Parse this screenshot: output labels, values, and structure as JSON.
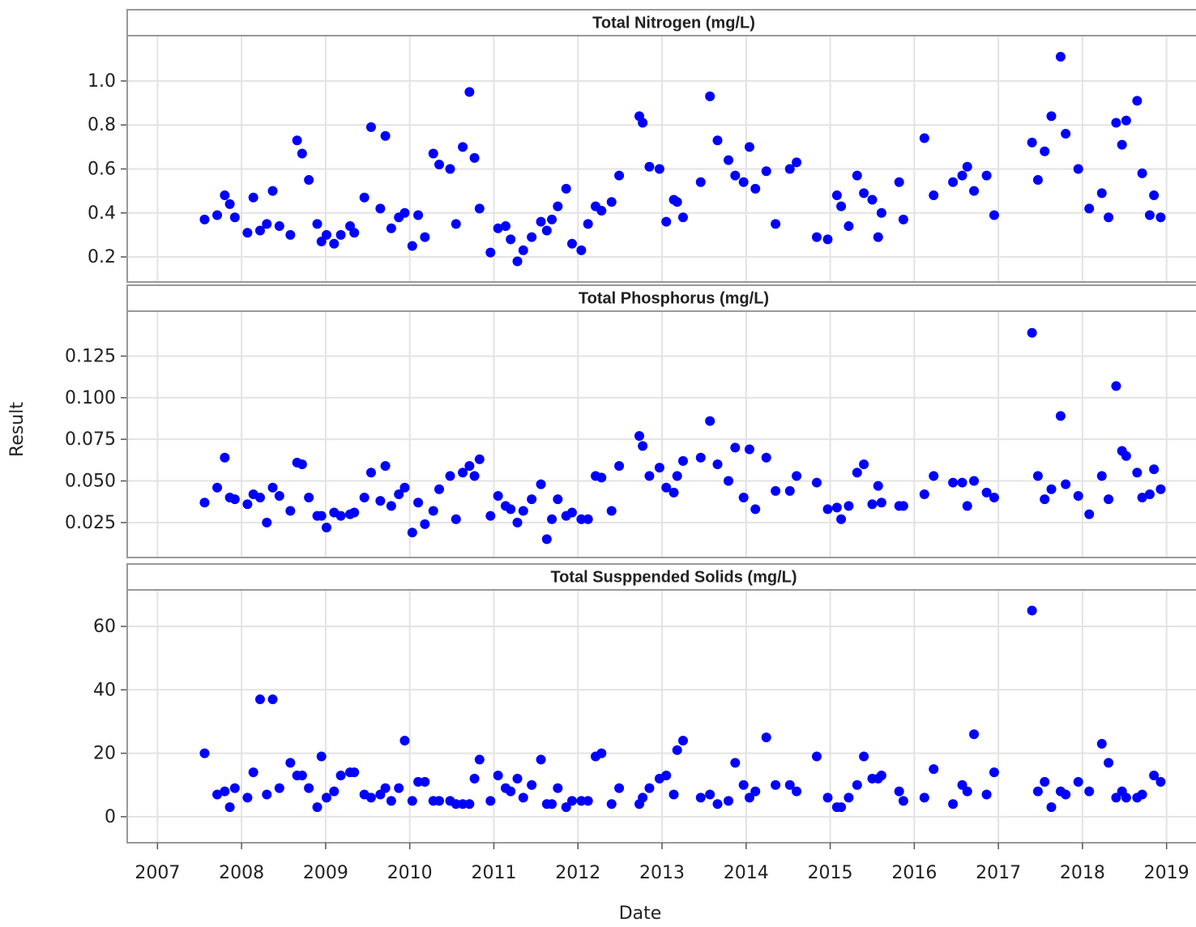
{
  "chart_data": {
    "type": "scatter",
    "xlabel": "Date",
    "ylabel": "Result",
    "color": "#0000ff",
    "grid": true,
    "xlim": [
      2006.64,
      2019.35
    ],
    "xticks": [
      2007,
      2008,
      2009,
      2010,
      2011,
      2012,
      2013,
      2014,
      2015,
      2016,
      2017,
      2018,
      2019
    ],
    "panels": [
      {
        "title": "Total Nitrogen (mg/L)",
        "ylim": [
          0.086,
          1.206
        ],
        "yticks": [
          0.2,
          0.4,
          0.6,
          0.8,
          {
            "value": 1,
            "label": "1.0"
          }
        ],
        "x": [
          2007.56,
          2007.71,
          2007.8,
          2007.86,
          2007.92,
          2008.07,
          2008.14,
          2008.22,
          2008.3,
          2008.37,
          2008.45,
          2008.58,
          2008.66,
          2008.72,
          2008.8,
          2008.9,
          2008.95,
          2009.01,
          2009.1,
          2009.18,
          2009.29,
          2009.34,
          2009.46,
          2009.54,
          2009.65,
          2009.71,
          2009.78,
          2009.87,
          2009.94,
          2010.03,
          2010.1,
          2010.18,
          2010.28,
          2010.35,
          2010.48,
          2010.55,
          2010.63,
          2010.71,
          2010.77,
          2010.83,
          2010.96,
          2011.05,
          2011.14,
          2011.2,
          2011.28,
          2011.35,
          2011.45,
          2011.56,
          2011.63,
          2011.69,
          2011.76,
          2011.86,
          2011.93,
          2012.04,
          2012.12,
          2012.21,
          2012.28,
          2012.4,
          2012.49,
          2012.73,
          2012.77,
          2012.85,
          2012.97,
          2013.05,
          2013.14,
          2013.18,
          2013.25,
          2013.46,
          2013.57,
          2013.66,
          2013.79,
          2013.87,
          2013.97,
          2014.04,
          2014.11,
          2014.24,
          2014.35,
          2014.52,
          2014.6,
          2014.84,
          2014.97,
          2015.08,
          2015.13,
          2015.22,
          2015.32,
          2015.4,
          2015.5,
          2015.57,
          2015.61,
          2015.82,
          2015.87,
          2016.12,
          2016.23,
          2016.46,
          2016.57,
          2016.63,
          2016.71,
          2016.86,
          2016.95,
          2017.4,
          2017.47,
          2017.55,
          2017.63,
          2017.74,
          2017.8,
          2017.95,
          2018.08,
          2018.23,
          2018.31,
          2018.4,
          2018.47,
          2018.52,
          2018.65,
          2018.71,
          2018.8,
          2018.85,
          2018.93
        ],
        "values": [
          0.37,
          0.39,
          0.48,
          0.44,
          0.38,
          0.31,
          0.47,
          0.32,
          0.35,
          0.5,
          0.34,
          0.3,
          0.73,
          0.67,
          0.55,
          0.35,
          0.27,
          0.3,
          0.26,
          0.3,
          0.34,
          0.31,
          0.47,
          0.79,
          0.42,
          0.75,
          0.33,
          0.38,
          0.4,
          0.25,
          0.39,
          0.29,
          0.67,
          0.62,
          0.6,
          0.35,
          0.7,
          0.95,
          0.65,
          0.42,
          0.22,
          0.33,
          0.34,
          0.28,
          0.18,
          0.23,
          0.29,
          0.36,
          0.32,
          0.37,
          0.43,
          0.51,
          0.26,
          0.23,
          0.35,
          0.43,
          0.41,
          0.45,
          0.57,
          0.84,
          0.81,
          0.61,
          0.6,
          0.36,
          0.46,
          0.45,
          0.38,
          0.54,
          0.93,
          0.73,
          0.64,
          0.57,
          0.54,
          0.7,
          0.51,
          0.59,
          0.35,
          0.6,
          0.63,
          0.29,
          0.28,
          0.48,
          0.43,
          0.34,
          0.57,
          0.49,
          0.46,
          0.29,
          0.4,
          0.54,
          0.37,
          0.74,
          0.48,
          0.54,
          0.57,
          0.61,
          0.5,
          0.57,
          0.39,
          0.72,
          0.55,
          0.68,
          0.84,
          1.11,
          0.76,
          0.6,
          0.42,
          0.49,
          0.38,
          0.81,
          0.71,
          0.82,
          0.91,
          0.58,
          0.39,
          0.48,
          0.38
        ]
      },
      {
        "title": "Total Phosphorus (mg/L)",
        "ylim": [
          0.004,
          0.152
        ],
        "yticks": [
          0.025,
          {
            "value": 0.05,
            "label": "0.050"
          },
          0.075,
          {
            "value": 0.1,
            "label": "0.100"
          },
          0.125
        ],
        "x": [
          2007.56,
          2007.71,
          2007.8,
          2007.86,
          2007.92,
          2008.07,
          2008.14,
          2008.22,
          2008.3,
          2008.37,
          2008.45,
          2008.58,
          2008.66,
          2008.72,
          2008.8,
          2008.9,
          2008.95,
          2009.01,
          2009.1,
          2009.18,
          2009.29,
          2009.34,
          2009.46,
          2009.54,
          2009.65,
          2009.71,
          2009.78,
          2009.87,
          2009.94,
          2010.03,
          2010.1,
          2010.18,
          2010.28,
          2010.35,
          2010.48,
          2010.55,
          2010.63,
          2010.71,
          2010.77,
          2010.83,
          2010.96,
          2011.05,
          2011.14,
          2011.2,
          2011.28,
          2011.35,
          2011.45,
          2011.56,
          2011.63,
          2011.69,
          2011.76,
          2011.86,
          2011.93,
          2012.04,
          2012.12,
          2012.21,
          2012.28,
          2012.4,
          2012.49,
          2012.73,
          2012.77,
          2012.85,
          2012.97,
          2013.05,
          2013.14,
          2013.18,
          2013.25,
          2013.46,
          2013.57,
          2013.66,
          2013.79,
          2013.87,
          2013.97,
          2014.04,
          2014.11,
          2014.24,
          2014.35,
          2014.52,
          2014.6,
          2014.84,
          2014.97,
          2015.08,
          2015.13,
          2015.22,
          2015.32,
          2015.4,
          2015.5,
          2015.57,
          2015.61,
          2015.82,
          2015.87,
          2016.12,
          2016.23,
          2016.46,
          2016.57,
          2016.63,
          2016.71,
          2016.86,
          2016.95,
          2017.4,
          2017.47,
          2017.55,
          2017.63,
          2017.74,
          2017.8,
          2017.95,
          2018.08,
          2018.23,
          2018.31,
          2018.4,
          2018.47,
          2018.52,
          2018.65,
          2018.71,
          2018.8,
          2018.85,
          2018.93
        ],
        "values": [
          0.037,
          0.046,
          0.064,
          0.04,
          0.039,
          0.036,
          0.042,
          0.04,
          0.025,
          0.046,
          0.041,
          0.032,
          0.061,
          0.06,
          0.04,
          0.029,
          0.029,
          0.022,
          0.031,
          0.029,
          0.03,
          0.031,
          0.04,
          0.055,
          0.038,
          0.059,
          0.035,
          0.042,
          0.046,
          0.019,
          0.037,
          0.024,
          0.032,
          0.045,
          0.053,
          0.027,
          0.055,
          0.059,
          0.053,
          0.063,
          0.029,
          0.041,
          0.035,
          0.033,
          0.025,
          0.032,
          0.039,
          0.048,
          0.015,
          0.027,
          0.039,
          0.029,
          0.031,
          0.027,
          0.027,
          0.053,
          0.052,
          0.032,
          0.059,
          0.077,
          0.071,
          0.053,
          0.058,
          0.046,
          0.043,
          0.053,
          0.062,
          0.064,
          0.086,
          0.06,
          0.05,
          0.07,
          0.04,
          0.069,
          0.033,
          0.064,
          0.044,
          0.044,
          0.053,
          0.049,
          0.033,
          0.034,
          0.027,
          0.035,
          0.055,
          0.06,
          0.036,
          0.047,
          0.037,
          0.035,
          0.035,
          0.042,
          0.053,
          0.049,
          0.049,
          0.035,
          0.05,
          0.043,
          0.04,
          0.139,
          0.053,
          0.039,
          0.045,
          0.089,
          0.048,
          0.041,
          0.03,
          0.053,
          0.039,
          0.107,
          0.068,
          0.065,
          0.055,
          0.04,
          0.042,
          0.057,
          0.045
        ]
      },
      {
        "title": "Total Susppended Solids (mg/L)",
        "ylim": [
          -8.2,
          71.5
        ],
        "yticks": [
          0,
          20,
          40,
          60
        ],
        "x": [
          2007.56,
          2007.71,
          2007.8,
          2007.86,
          2007.92,
          2008.07,
          2008.14,
          2008.22,
          2008.3,
          2008.37,
          2008.45,
          2008.58,
          2008.66,
          2008.72,
          2008.8,
          2008.9,
          2008.95,
          2009.01,
          2009.1,
          2009.18,
          2009.29,
          2009.34,
          2009.46,
          2009.54,
          2009.65,
          2009.71,
          2009.78,
          2009.87,
          2009.94,
          2010.03,
          2010.1,
          2010.18,
          2010.28,
          2010.35,
          2010.48,
          2010.55,
          2010.63,
          2010.71,
          2010.77,
          2010.83,
          2010.96,
          2011.05,
          2011.14,
          2011.2,
          2011.28,
          2011.35,
          2011.45,
          2011.56,
          2011.63,
          2011.69,
          2011.76,
          2011.86,
          2011.93,
          2012.04,
          2012.12,
          2012.21,
          2012.28,
          2012.4,
          2012.49,
          2012.73,
          2012.77,
          2012.85,
          2012.97,
          2013.05,
          2013.14,
          2013.18,
          2013.25,
          2013.46,
          2013.57,
          2013.66,
          2013.79,
          2013.87,
          2013.97,
          2014.04,
          2014.11,
          2014.24,
          2014.35,
          2014.52,
          2014.6,
          2014.84,
          2014.97,
          2015.08,
          2015.13,
          2015.22,
          2015.32,
          2015.4,
          2015.5,
          2015.57,
          2015.61,
          2015.82,
          2015.87,
          2016.12,
          2016.23,
          2016.46,
          2016.57,
          2016.63,
          2016.71,
          2016.86,
          2016.95,
          2017.4,
          2017.47,
          2017.55,
          2017.63,
          2017.74,
          2017.8,
          2017.95,
          2018.08,
          2018.23,
          2018.31,
          2018.4,
          2018.47,
          2018.52,
          2018.65,
          2018.71,
          2018.85,
          2018.93
        ],
        "values": [
          20,
          7,
          8,
          3,
          9,
          6,
          14,
          37,
          7,
          37,
          9,
          17,
          13,
          13,
          9,
          3,
          19,
          6,
          8,
          13,
          14,
          14,
          7,
          6,
          7,
          9,
          5,
          9,
          24,
          5,
          11,
          11,
          5,
          5,
          5,
          4,
          4,
          4,
          12,
          18,
          5,
          13,
          9,
          8,
          12,
          6,
          10,
          18,
          4,
          4,
          9,
          3,
          5,
          5,
          5,
          19,
          20,
          4,
          9,
          4,
          6,
          9,
          12,
          13,
          7,
          21,
          24,
          6,
          7,
          4,
          5,
          17,
          10,
          6,
          8,
          25,
          10,
          10,
          8,
          19,
          6,
          3,
          3,
          6,
          10,
          19,
          12,
          12,
          13,
          8,
          5,
          6,
          15,
          4,
          10,
          8,
          26,
          7,
          14,
          65,
          8,
          11,
          3,
          8,
          7,
          11,
          8,
          23,
          17,
          6,
          8,
          6,
          6,
          7,
          13,
          11
        ]
      }
    ]
  }
}
